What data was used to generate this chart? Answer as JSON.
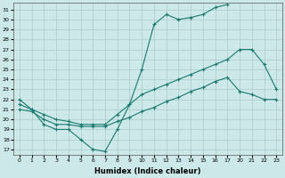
{
  "xlabel": "Humidex (Indice chaleur)",
  "bg_color": "#cce8e8",
  "grid_color": "#aacccc",
  "line_color": "#1a7a6e",
  "xlim": [
    -0.5,
    23.5
  ],
  "ylim": [
    16.5,
    31.7
  ],
  "xtick_vals": [
    0,
    1,
    2,
    3,
    4,
    5,
    6,
    7,
    8,
    9,
    10,
    11,
    12,
    13,
    14,
    15,
    16,
    17,
    20,
    21,
    22,
    23
  ],
  "xtick_labels": [
    "0",
    "1",
    "2",
    "3",
    "4",
    "5",
    "6",
    "7",
    "8",
    "9",
    "10",
    "11",
    "12",
    "13",
    "14",
    "15",
    "16",
    "17",
    "20",
    "21",
    "22",
    "23"
  ],
  "ytick_vals": [
    17,
    18,
    19,
    20,
    21,
    22,
    23,
    24,
    25,
    26,
    27,
    28,
    29,
    30,
    31
  ],
  "series": [
    {
      "x": [
        0,
        1,
        2,
        3,
        4,
        5,
        6,
        7,
        8,
        9,
        10,
        11,
        12,
        13,
        14,
        15,
        16,
        17
      ],
      "y": [
        22.0,
        21.0,
        19.5,
        19.0,
        19.0,
        18.0,
        17.0,
        16.8,
        19.0,
        21.5,
        25.0,
        29.5,
        30.5,
        30.0,
        30.2,
        30.5,
        31.2,
        31.5
      ]
    },
    {
      "x": [
        0,
        1,
        2,
        3,
        4,
        5,
        6,
        7,
        8,
        9,
        10,
        11,
        12,
        13,
        14,
        15,
        16,
        17,
        20,
        21,
        22,
        23
      ],
      "y": [
        21.0,
        20.8,
        20.0,
        19.5,
        19.5,
        19.3,
        19.3,
        19.3,
        19.8,
        20.2,
        20.8,
        21.2,
        21.8,
        22.2,
        22.8,
        23.2,
        23.8,
        24.2,
        22.8,
        22.5,
        22.0,
        22.0
      ]
    },
    {
      "x": [
        0,
        1,
        2,
        3,
        4,
        5,
        6,
        7,
        8,
        9,
        10,
        11,
        12,
        13,
        14,
        15,
        16,
        17,
        20,
        21,
        22,
        23
      ],
      "y": [
        21.5,
        21.0,
        20.5,
        20.0,
        19.8,
        19.5,
        19.5,
        19.5,
        20.5,
        21.5,
        22.5,
        23.0,
        23.5,
        24.0,
        24.5,
        25.0,
        25.5,
        26.0,
        27.0,
        27.0,
        25.5,
        23.0
      ]
    }
  ]
}
